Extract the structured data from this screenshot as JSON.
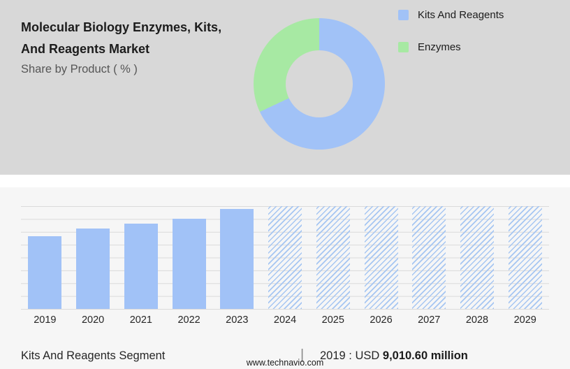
{
  "header": {
    "title_line1": "Molecular Biology Enzymes, Kits,",
    "title_line2": "And Reagents Market",
    "subtitle": "Share by Product ( % )"
  },
  "colors": {
    "kits_blue": "#a1c2f7",
    "enzymes_green": "#a7e9a3",
    "top_background": "#d8d8d8",
    "bottom_background": "#f6f6f6"
  },
  "legend": [
    {
      "label": "Kits And Reagents",
      "color": "#a1c2f7"
    },
    {
      "label": "Enzymes",
      "color": "#a7e9a3"
    }
  ],
  "chart_data": [
    {
      "type": "pie",
      "donut": true,
      "title": "Share by Product ( % )",
      "labels": [
        "Kits And Reagents",
        "Enzymes"
      ],
      "values": [
        68,
        32
      ],
      "colors": [
        "#a1c2f7",
        "#a7e9a3"
      ],
      "legend_position": "right"
    },
    {
      "type": "bar",
      "categories": [
        "2019",
        "2020",
        "2021",
        "2022",
        "2023",
        "2024",
        "2025",
        "2026",
        "2027",
        "2028",
        "2029"
      ],
      "series": [
        {
          "name": "Kits And Reagents segment market size (USD million)",
          "values": [
            9010.6,
            9900,
            10530,
            11170,
            12310,
            null,
            null,
            null,
            null,
            null,
            null
          ]
        }
      ],
      "values_estimated_except": "2019",
      "forecast_years": [
        "2024",
        "2025",
        "2026",
        "2027",
        "2028",
        "2029"
      ],
      "grid": "horizontal",
      "xlabel": "",
      "ylabel": "",
      "bars": [
        {
          "year": "2019",
          "height_pct": 71,
          "style": "solid"
        },
        {
          "year": "2020",
          "height_pct": 78,
          "style": "solid"
        },
        {
          "year": "2021",
          "height_pct": 83,
          "style": "solid"
        },
        {
          "year": "2022",
          "height_pct": 88,
          "style": "solid"
        },
        {
          "year": "2023",
          "height_pct": 97,
          "style": "solid"
        },
        {
          "year": "2024",
          "height_pct": 100,
          "style": "hatched"
        },
        {
          "year": "2025",
          "height_pct": 100,
          "style": "hatched"
        },
        {
          "year": "2026",
          "height_pct": 100,
          "style": "hatched"
        },
        {
          "year": "2027",
          "height_pct": 100,
          "style": "hatched"
        },
        {
          "year": "2028",
          "height_pct": 100,
          "style": "hatched"
        },
        {
          "year": "2029",
          "height_pct": 100,
          "style": "hatched"
        }
      ]
    }
  ],
  "footer": {
    "segment_label": "Kits And Reagents Segment",
    "separator": "|",
    "stat_prefix": "2019 : USD ",
    "stat_value": "9,010.60 million",
    "website": "www.technavio.com"
  }
}
